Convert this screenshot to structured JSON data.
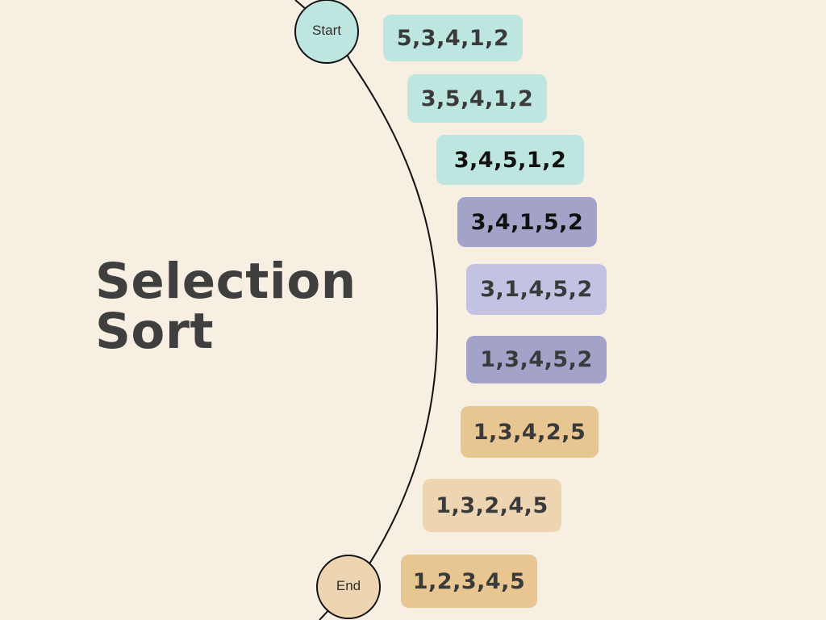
{
  "title": {
    "line1": "Selection",
    "line2": "Sort"
  },
  "nodes": {
    "start": {
      "label": "Start",
      "color": "#bce6df"
    },
    "end": {
      "label": "End",
      "color": "#eed5b2"
    }
  },
  "steps": [
    {
      "text": "5,3,4,1,2",
      "color": "#bce6df"
    },
    {
      "text": "3,5,4,1,2",
      "color": "#bce6df"
    },
    {
      "text": "3,4,5,1,2",
      "color": "#bce6df"
    },
    {
      "text": "3,4,1,5,2",
      "color": "#a3a3c9"
    },
    {
      "text": "3,1,4,5,2",
      "color": "#c2c2e2"
    },
    {
      "text": "1,3,4,5,2",
      "color": "#a3a3c9"
    },
    {
      "text": "1,3,4,2,5",
      "color": "#e7c691"
    },
    {
      "text": "1,3,2,4,5",
      "color": "#eed5b2"
    },
    {
      "text": "1,2,3,4,5",
      "color": "#e7c691"
    }
  ],
  "colors": {
    "background": "#f7efe2",
    "arc": "#111111",
    "text": "#3a3a3a"
  }
}
